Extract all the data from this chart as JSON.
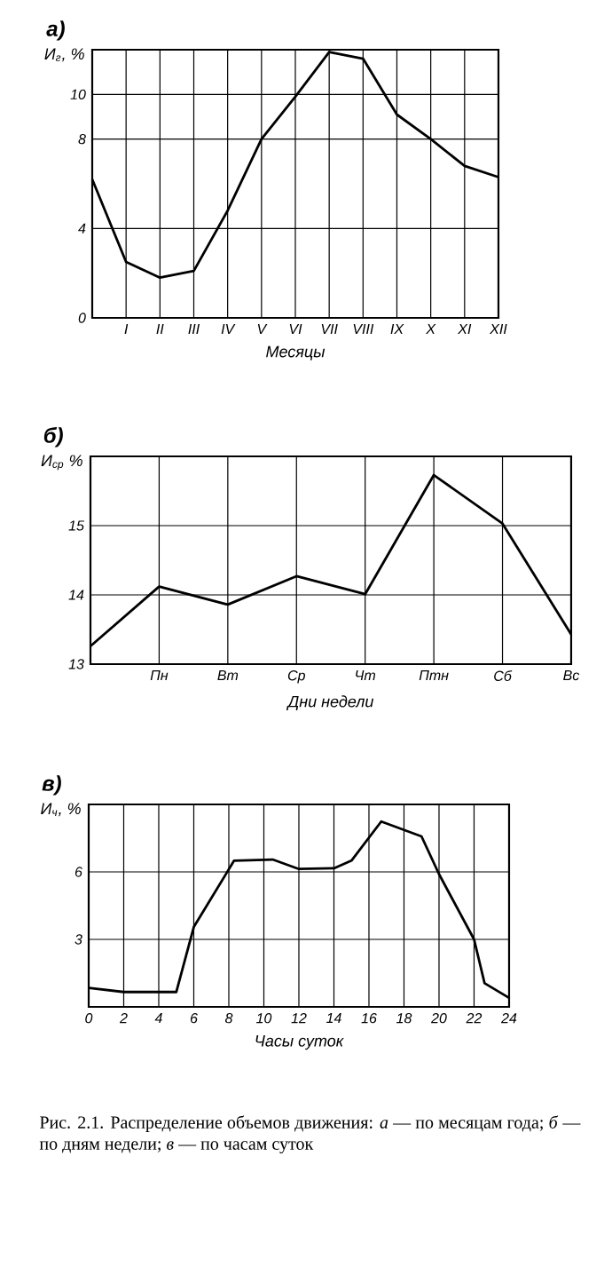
{
  "chart_data": [
    {
      "type": "line",
      "title": "а)",
      "ylabel": "И$_{г}$, %",
      "xlabel": "Месяцы",
      "categories": [
        null,
        "I",
        "II",
        "III",
        "IV",
        "V",
        "VI",
        "VII",
        "VIII",
        "IX",
        "X",
        "XI",
        "XII"
      ],
      "values": [
        6.2,
        2.5,
        1.8,
        2.1,
        4.8,
        8.0,
        9.9,
        11.9,
        11.6,
        9.1,
        8.0,
        6.8,
        6.3
      ],
      "color": "#000000",
      "ylim": [
        0,
        12
      ],
      "yticks": [
        0,
        4,
        8,
        10
      ],
      "grid": true
    },
    {
      "type": "line",
      "title": "б)",
      "ylabel": "И$_{ср}$ %",
      "xlabel": "Дни недели",
      "categories": [
        null,
        "Пн",
        "Вт",
        "Ср",
        "Чт",
        "Птн",
        "Сб",
        "Вс"
      ],
      "values": [
        13.26,
        14.12,
        13.86,
        14.27,
        14.01,
        15.73,
        15.03,
        13.43
      ],
      "color": "#000000",
      "ylim": [
        13,
        16
      ],
      "yticks": [
        13,
        14,
        15
      ],
      "grid": true
    },
    {
      "type": "line",
      "title": "в)",
      "ylabel": "И$_{ч}$, %",
      "xlabel": "Часы суток",
      "x": [
        0,
        2,
        4,
        5,
        6,
        8.3,
        10.5,
        12,
        14,
        15,
        16.7,
        19,
        20,
        22,
        22.6,
        24
      ],
      "values": [
        0.84,
        0.66,
        0.66,
        0.66,
        3.55,
        6.5,
        6.55,
        6.13,
        6.16,
        6.5,
        8.24,
        7.58,
        5.9,
        3.0,
        1.05,
        0.4
      ],
      "color": "#000000",
      "xlim": [
        0,
        24
      ],
      "xticks": [
        0,
        2,
        4,
        6,
        8,
        10,
        12,
        14,
        16,
        18,
        20,
        22,
        24
      ],
      "ylim": [
        0,
        9
      ],
      "yticks": [
        3,
        6
      ],
      "grid": true,
      "annotations": [
        "Рис. 2.1. Распределение объемов движения: *а* — по месяцам года; *б* — по дням недели; *в* — по часам суток"
      ]
    }
  ]
}
